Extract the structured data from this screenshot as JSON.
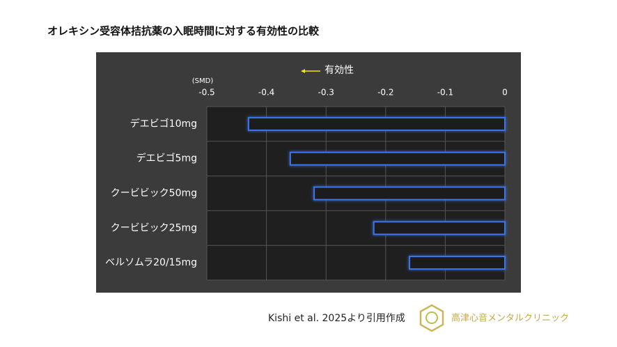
{
  "chart_data": {
    "type": "bar",
    "orientation": "horizontal",
    "title": "オレキシン受容体拮抗薬の入眠時間に対する有効性の比較",
    "x_unit_label": "(SMD)",
    "annotation": "有効性",
    "categories": [
      "デエビゴ10mg",
      "デエビゴ5mg",
      "クービビック50mg",
      "クービビック25mg",
      "ベルソムラ20/15mg"
    ],
    "values": [
      -0.43,
      -0.36,
      -0.32,
      -0.22,
      -0.16
    ],
    "color": "#3d74e8",
    "xlim": [
      -0.5,
      0
    ],
    "xticks": [
      -0.5,
      -0.4,
      -0.3,
      -0.2,
      -0.1,
      0
    ],
    "grid": true
  },
  "footer": {
    "source": "Kishi et al. 2025より引用作成",
    "logo_text": "高津心音メンタルクリニック"
  }
}
